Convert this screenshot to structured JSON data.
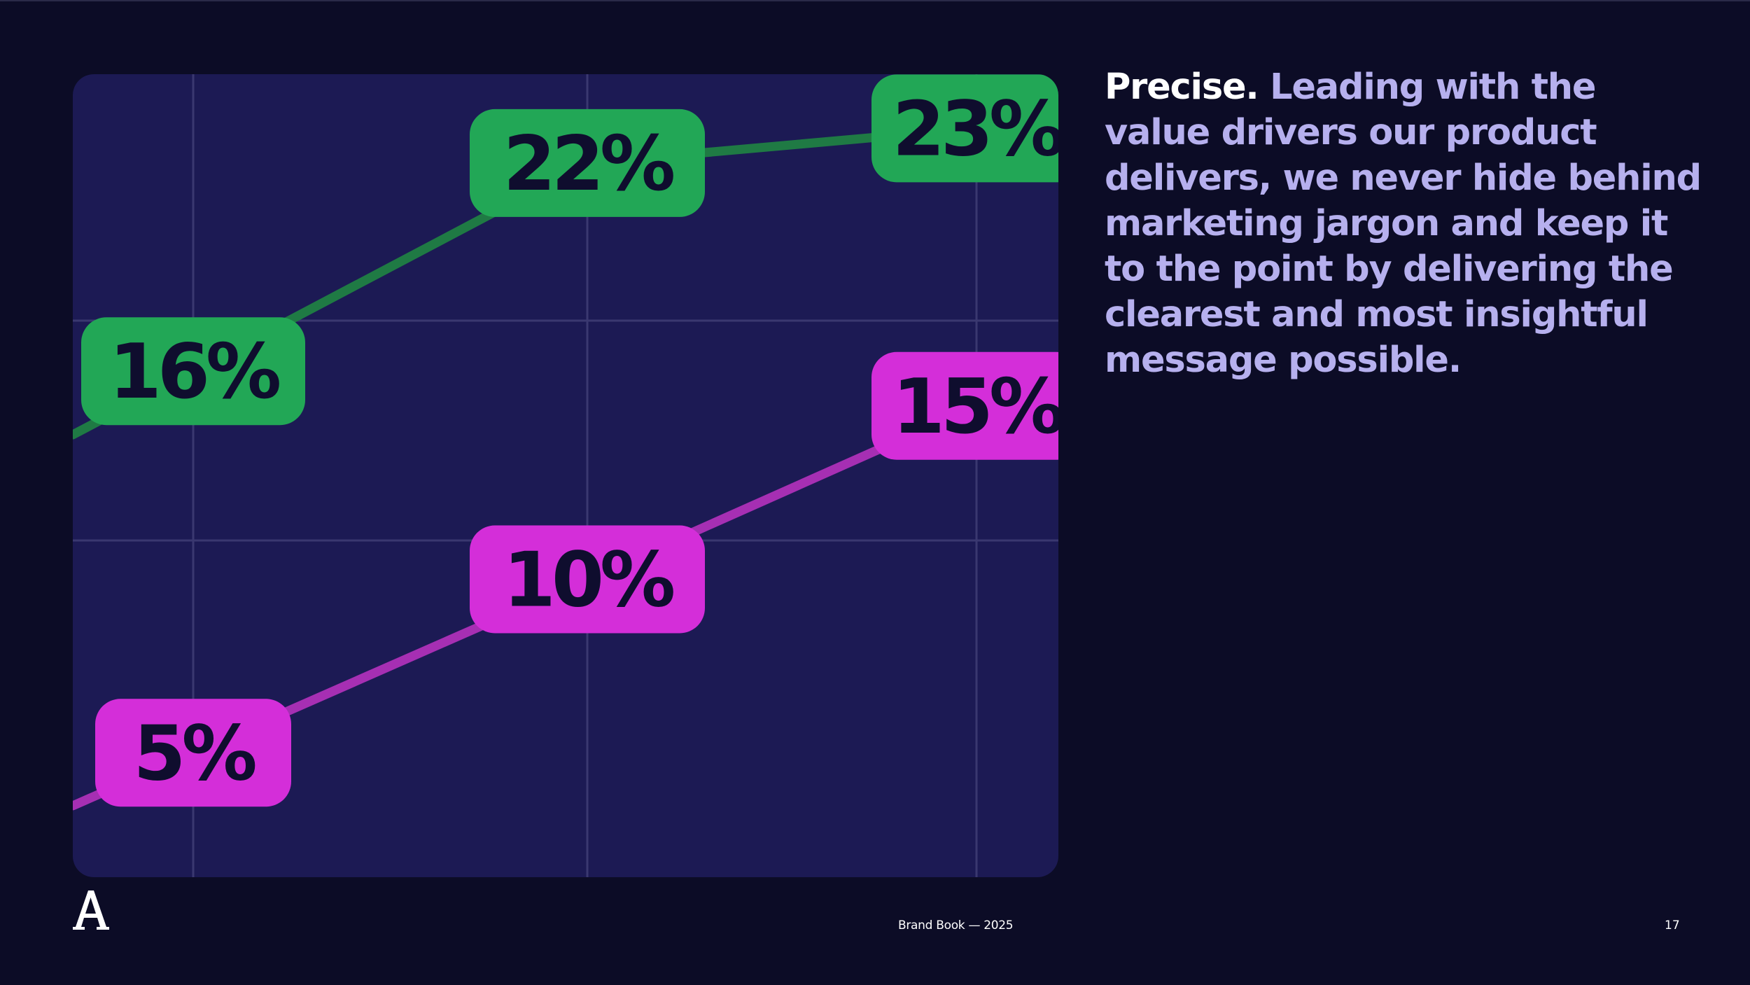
{
  "slide": {
    "lead_word": "Precise.",
    "body_text": "Leading with the value drivers our product delivers, we never hide behind marketing jargon and keep it to the point by delivering the clearest and most insightful message possible.",
    "footer_title": "Brand Book — 2025",
    "page_number": "17",
    "logo_icon": "serif-letter-a-logo-icon"
  },
  "colors": {
    "background": "#0c0c26",
    "panel": "#1c1a54",
    "grid": "#3a3870",
    "green_label": "#22a756",
    "green_line": "#1f7a44",
    "magenta_label": "#d42ed9",
    "magenta_line": "#a62fb3",
    "label_text": "#0f0d2e",
    "body_text": "#b6b0ee",
    "lead_text": "#ffffff"
  },
  "chart_data": {
    "type": "line",
    "grid": true,
    "legend": "none",
    "categories": [
      "",
      "",
      ""
    ],
    "series": [
      {
        "values": [
          16,
          22,
          23
        ],
        "labels": [
          "16%",
          "22%",
          "23%"
        ],
        "color": "green"
      },
      {
        "values": [
          5,
          10,
          15
        ],
        "labels": [
          "5%",
          "10%",
          "15%"
        ],
        "color": "magenta"
      }
    ]
  }
}
